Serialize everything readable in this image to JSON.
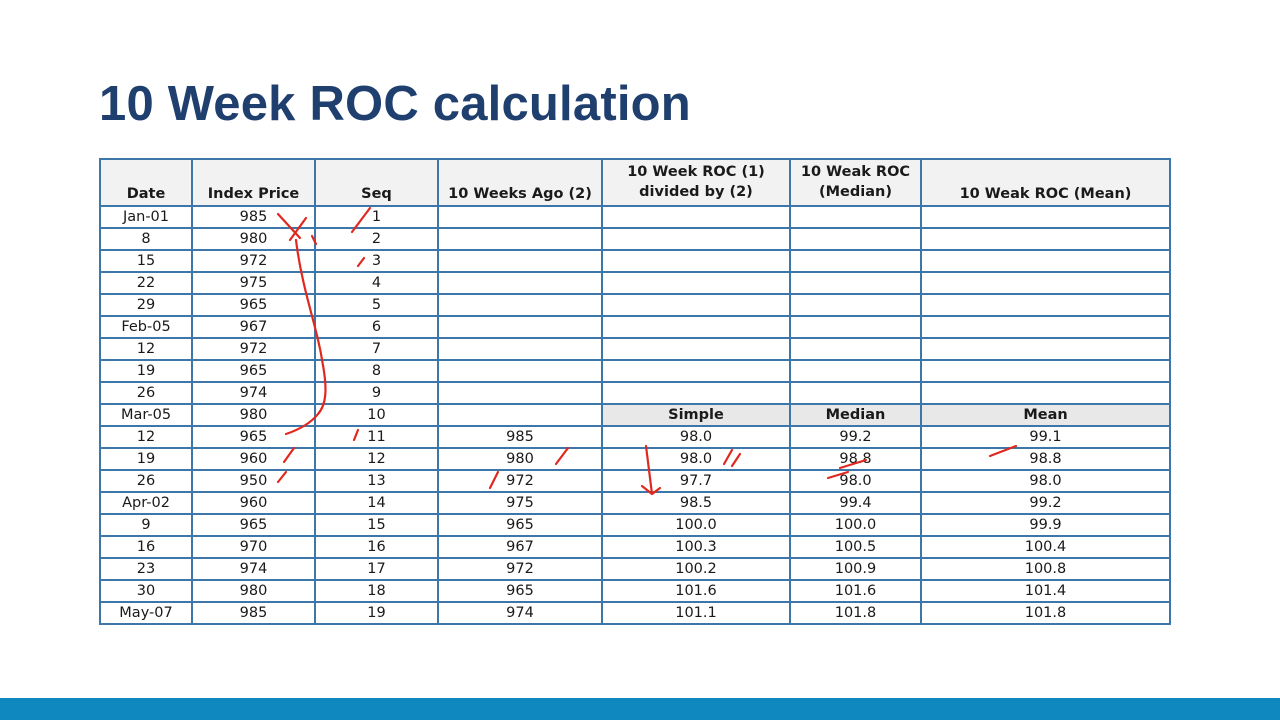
{
  "title": "10 Week ROC calculation",
  "table": {
    "headers": [
      "Date",
      "Index Price",
      "Seq",
      "10 Weeks Ago (2)",
      "10 Week ROC (1) divided by (2)",
      "10 Weak ROC (Median)",
      "10 Weak ROC (Mean)"
    ],
    "subheaders": [
      "Simple",
      "Median",
      "Mean"
    ],
    "rows": [
      {
        "date": "Jan-01",
        "price": "985",
        "seq": "1",
        "ago": "",
        "roc": "",
        "median": "",
        "mean": ""
      },
      {
        "date": "8",
        "price": "980",
        "seq": "2",
        "ago": "",
        "roc": "",
        "median": "",
        "mean": ""
      },
      {
        "date": "15",
        "price": "972",
        "seq": "3",
        "ago": "",
        "roc": "",
        "median": "",
        "mean": ""
      },
      {
        "date": "22",
        "price": "975",
        "seq": "4",
        "ago": "",
        "roc": "",
        "median": "",
        "mean": ""
      },
      {
        "date": "29",
        "price": "965",
        "seq": "5",
        "ago": "",
        "roc": "",
        "median": "",
        "mean": ""
      },
      {
        "date": "Feb-05",
        "price": "967",
        "seq": "6",
        "ago": "",
        "roc": "",
        "median": "",
        "mean": ""
      },
      {
        "date": "12",
        "price": "972",
        "seq": "7",
        "ago": "",
        "roc": "",
        "median": "",
        "mean": ""
      },
      {
        "date": "19",
        "price": "965",
        "seq": "8",
        "ago": "",
        "roc": "",
        "median": "",
        "mean": ""
      },
      {
        "date": "26",
        "price": "974",
        "seq": "9",
        "ago": "",
        "roc": "",
        "median": "",
        "mean": ""
      },
      {
        "date": "Mar-05",
        "price": "980",
        "seq": "10",
        "ago": "",
        "roc": "",
        "median": "",
        "mean": ""
      },
      {
        "date": "12",
        "price": "965",
        "seq": "11",
        "ago": "985",
        "roc": "98.0",
        "median": "99.2",
        "mean": "99.1"
      },
      {
        "date": "19",
        "price": "960",
        "seq": "12",
        "ago": "980",
        "roc": "98.0",
        "median": "98.8",
        "mean": "98.8"
      },
      {
        "date": "26",
        "price": "950",
        "seq": "13",
        "ago": "972",
        "roc": "97.7",
        "median": "98.0",
        "mean": "98.0"
      },
      {
        "date": "Apr-02",
        "price": "960",
        "seq": "14",
        "ago": "975",
        "roc": "98.5",
        "median": "99.4",
        "mean": "99.2"
      },
      {
        "date": "9",
        "price": "965",
        "seq": "15",
        "ago": "965",
        "roc": "100.0",
        "median": "100.0",
        "mean": "99.9"
      },
      {
        "date": "16",
        "price": "970",
        "seq": "16",
        "ago": "967",
        "roc": "100.3",
        "median": "100.5",
        "mean": "100.4"
      },
      {
        "date": "23",
        "price": "974",
        "seq": "17",
        "ago": "972",
        "roc": "100.2",
        "median": "100.9",
        "mean": "100.8"
      },
      {
        "date": "30",
        "price": "980",
        "seq": "18",
        "ago": "965",
        "roc": "101.6",
        "median": "101.6",
        "mean": "101.4"
      },
      {
        "date": "May-07",
        "price": "985",
        "seq": "19",
        "ago": "974",
        "roc": "101.1",
        "median": "101.8",
        "mean": "101.8"
      }
    ]
  },
  "colors": {
    "title": "#1f3f6e",
    "table_border": "#3d76a8",
    "header_bg": "#f2f2f2",
    "bottom_bar": "#0f87bf",
    "annotation_ink": "#e0281f"
  }
}
